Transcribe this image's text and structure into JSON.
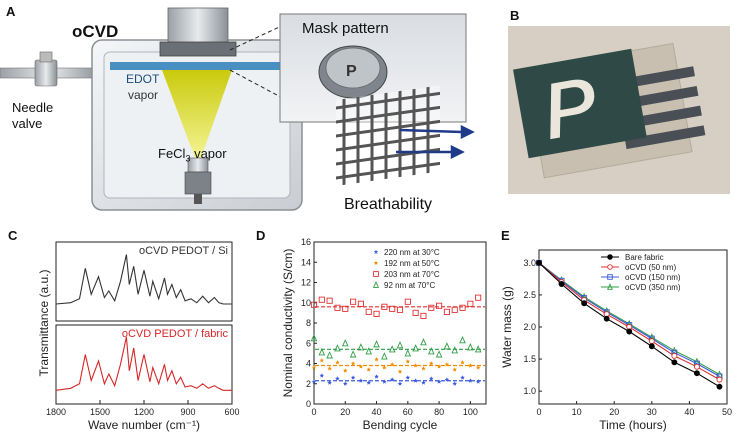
{
  "panel_a": {
    "letter": "A",
    "title": "oCVD",
    "needle_valve": "Needle valve",
    "edot": "EDOT",
    "vapor": "vapor",
    "fecl3": "FeCl",
    "fecl3_sub": "3",
    "fecl3_vapor": " vapor",
    "mask_pattern": "Mask pattern",
    "breathability": "Breathability",
    "mask_logo": "P"
  },
  "panel_b": {
    "letter": "B",
    "logo": "P"
  },
  "chart_data": [
    {
      "panel": "C",
      "type": "line",
      "xlabel": "Wave number (cm⁻¹)",
      "ylabel": "Transmittance (a.u.)",
      "xlim": [
        1800,
        600
      ],
      "xticks": [
        1800,
        1500,
        1200,
        900,
        600
      ],
      "series": [
        {
          "name": "oCVD PEDOT / Si",
          "color": "#333333",
          "x": [
            1800,
            1700,
            1640,
            1600,
            1560,
            1510,
            1470,
            1440,
            1400,
            1360,
            1320,
            1300,
            1270,
            1240,
            1200,
            1160,
            1140,
            1100,
            1060,
            1040,
            1010,
            980,
            950,
            920,
            880,
            840,
            800,
            760,
            720,
            690,
            660,
            630,
            600
          ],
          "y": [
            0.2,
            0.22,
            0.28,
            0.75,
            0.35,
            0.62,
            0.3,
            0.4,
            0.25,
            0.55,
            0.96,
            0.5,
            0.78,
            0.35,
            0.72,
            0.32,
            0.55,
            0.28,
            0.6,
            0.35,
            0.5,
            0.3,
            0.42,
            0.25,
            0.28,
            0.22,
            0.32,
            0.22,
            0.3,
            0.22,
            0.2,
            0.2,
            0.2
          ]
        },
        {
          "name": "oCVD PEDOT / fabric",
          "color": "#d62728",
          "x": [
            1800,
            1700,
            1640,
            1600,
            1560,
            1510,
            1470,
            1440,
            1400,
            1360,
            1320,
            1300,
            1270,
            1240,
            1200,
            1160,
            1140,
            1100,
            1060,
            1040,
            1010,
            980,
            950,
            920,
            880,
            840,
            800,
            760,
            720,
            690,
            660,
            630,
            600
          ],
          "y": [
            0.15,
            0.18,
            0.25,
            0.7,
            0.3,
            0.6,
            0.25,
            0.4,
            0.22,
            0.55,
            0.97,
            0.45,
            0.8,
            0.3,
            0.7,
            0.28,
            0.5,
            0.25,
            0.55,
            0.3,
            0.45,
            0.25,
            0.35,
            0.2,
            0.22,
            0.18,
            0.25,
            0.18,
            0.22,
            0.18,
            0.15,
            0.15,
            0.15
          ]
        }
      ]
    },
    {
      "panel": "D",
      "type": "scatter",
      "xlabel": "Bending cycle",
      "ylabel": "Nominal conductivity (S/cm)",
      "xlim": [
        0,
        110
      ],
      "ylim": [
        0,
        16
      ],
      "xticks": [
        0,
        20,
        40,
        60,
        80,
        100
      ],
      "yticks": [
        0,
        2,
        4,
        6,
        8,
        10,
        12,
        14,
        16
      ],
      "series": [
        {
          "name": "220 nm at 30°C",
          "color": "#3b5bdb",
          "marker": "star",
          "mean": 2.3,
          "x": [
            0,
            5,
            10,
            15,
            20,
            25,
            30,
            35,
            40,
            45,
            50,
            55,
            60,
            65,
            70,
            75,
            80,
            85,
            90,
            95,
            100,
            105
          ],
          "y": [
            2.2,
            2.8,
            2.1,
            2.5,
            2.0,
            2.6,
            2.3,
            2.1,
            2.7,
            2.2,
            2.4,
            2.0,
            2.6,
            2.3,
            2.1,
            2.5,
            2.2,
            2.4,
            2.0,
            2.6,
            2.3,
            2.2
          ]
        },
        {
          "name": "192 nm at 50°C",
          "color": "#f08c00",
          "marker": "star",
          "mean": 3.8,
          "x": [
            0,
            5,
            10,
            15,
            20,
            25,
            30,
            35,
            40,
            45,
            50,
            55,
            60,
            65,
            70,
            75,
            80,
            85,
            90,
            95,
            100,
            105
          ],
          "y": [
            3.6,
            4.3,
            3.5,
            4.1,
            3.3,
            4.0,
            3.7,
            3.4,
            4.4,
            3.6,
            3.9,
            3.2,
            4.2,
            3.8,
            3.5,
            4.0,
            3.7,
            3.9,
            3.4,
            4.1,
            3.8,
            3.6
          ]
        },
        {
          "name": "203 nm at 70°C",
          "color": "#e03131",
          "marker": "square",
          "mean": 9.6,
          "x": [
            0,
            5,
            10,
            15,
            20,
            25,
            30,
            35,
            40,
            45,
            50,
            55,
            60,
            65,
            70,
            75,
            80,
            85,
            90,
            95,
            100,
            105
          ],
          "y": [
            9.8,
            10.3,
            10.2,
            9.5,
            9.4,
            10.1,
            9.9,
            9.1,
            8.9,
            9.6,
            9.4,
            9.3,
            10.1,
            9.0,
            8.7,
            9.5,
            9.7,
            9.1,
            9.3,
            9.5,
            9.9,
            10.5
          ]
        },
        {
          "name": "92 nm at 70°C",
          "color": "#2f9e44",
          "marker": "triangle",
          "mean": 5.4,
          "x": [
            0,
            5,
            10,
            15,
            20,
            25,
            30,
            35,
            40,
            45,
            50,
            55,
            60,
            65,
            70,
            75,
            80,
            85,
            90,
            95,
            100,
            105
          ],
          "y": [
            6.5,
            5.1,
            4.8,
            5.5,
            6.0,
            4.9,
            5.6,
            5.2,
            5.9,
            4.7,
            5.4,
            5.8,
            5.0,
            5.5,
            6.1,
            5.2,
            4.9,
            5.7,
            5.3,
            6.3,
            5.6,
            5.4
          ]
        }
      ]
    },
    {
      "panel": "E",
      "type": "line",
      "xlabel": "Time (hours)",
      "ylabel": "Water mass (g)",
      "xlim": [
        0,
        50
      ],
      "ylim": [
        0.8,
        3.2
      ],
      "xticks": [
        0,
        10,
        20,
        30,
        40,
        50
      ],
      "yticks": [
        1.0,
        1.5,
        2.0,
        2.5,
        3.0
      ],
      "series": [
        {
          "name": "Bare fabric",
          "color": "#000000",
          "marker": "circle-filled",
          "x": [
            0,
            6,
            12,
            18,
            24,
            30,
            36,
            42,
            48
          ],
          "y": [
            3.0,
            2.67,
            2.37,
            2.13,
            1.93,
            1.7,
            1.45,
            1.28,
            1.07
          ]
        },
        {
          "name": "oCVD (50 nm)",
          "color": "#e03131",
          "marker": "circle",
          "x": [
            0,
            6,
            12,
            18,
            24,
            30,
            36,
            42,
            48
          ],
          "y": [
            3.0,
            2.7,
            2.42,
            2.2,
            2.0,
            1.78,
            1.55,
            1.38,
            1.18
          ]
        },
        {
          "name": "oCVD (150 nm)",
          "color": "#3b5bdb",
          "marker": "square",
          "x": [
            0,
            6,
            12,
            18,
            24,
            30,
            36,
            42,
            48
          ],
          "y": [
            3.0,
            2.72,
            2.45,
            2.23,
            2.03,
            1.82,
            1.6,
            1.43,
            1.23
          ]
        },
        {
          "name": "oCVD (350 nm)",
          "color": "#2f9e44",
          "marker": "triangle",
          "x": [
            0,
            6,
            12,
            18,
            24,
            30,
            36,
            42,
            48
          ],
          "y": [
            3.0,
            2.73,
            2.47,
            2.25,
            2.05,
            1.84,
            1.63,
            1.46,
            1.26
          ]
        }
      ]
    }
  ],
  "panel_letters": {
    "c": "C",
    "d": "D",
    "e": "E"
  }
}
